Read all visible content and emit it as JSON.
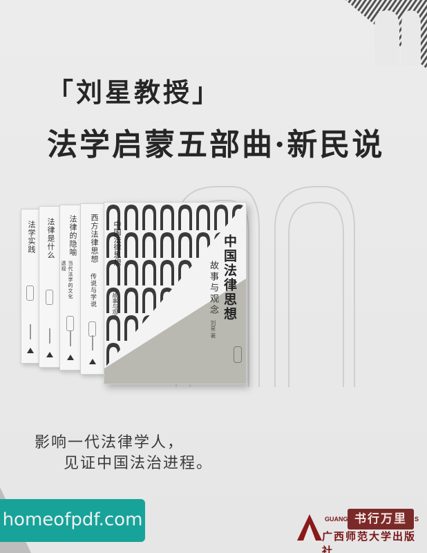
{
  "header": {
    "line1": "「刘星教授」",
    "line2": "法学启蒙五部曲·新民说"
  },
  "books": {
    "spines": [
      {
        "title": "法学实践",
        "subtitle": ""
      },
      {
        "title": "法律是什么",
        "subtitle": ""
      },
      {
        "title": "法律的隐喻",
        "subtitle": "当代法学的文化透视"
      },
      {
        "title": "西方法律思想",
        "subtitle": "传说与学说"
      },
      {
        "title": "中国法律思想",
        "subtitle": "故事与观念"
      }
    ],
    "front": {
      "title": "中国法律思想",
      "subtitle": "故事与观念",
      "author": "刘星 著"
    }
  },
  "slogan": {
    "line1": "影响一代法律学人，",
    "line2": "见证中国法治进程。"
  },
  "watermark": {
    "site": "homeofpdf.com",
    "seal": "书行万里"
  },
  "publisher": {
    "name_en": "GUANGXI",
    "name_en_tail": "S",
    "name_cn": "广西师范大学出版社"
  },
  "colors": {
    "background": "#e9e9e9",
    "accent_teal": "#17a39a",
    "publisher_red": "#7a1414"
  }
}
